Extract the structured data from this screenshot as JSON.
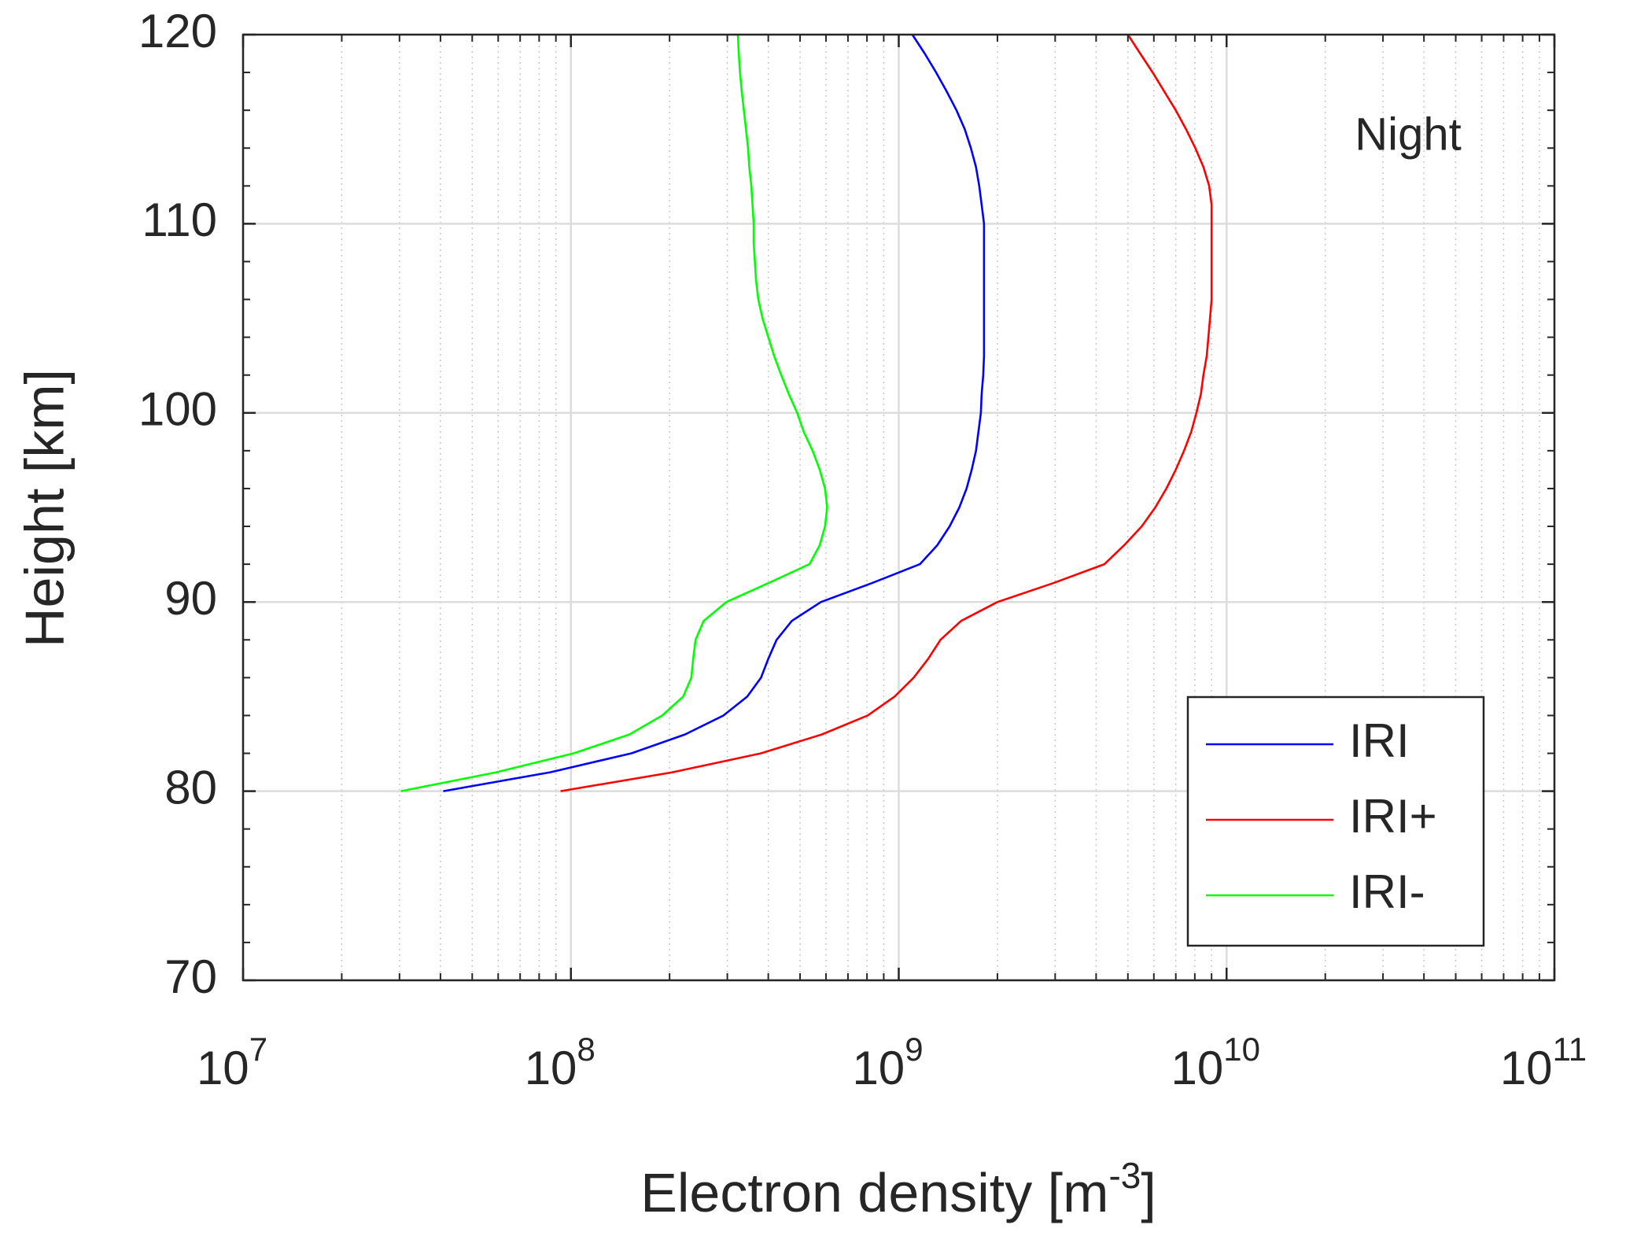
{
  "chart_data": {
    "type": "line",
    "orientation": "profile",
    "annotation": "Night",
    "x_label": [
      "Electron density [m",
      "-3",
      "]"
    ],
    "y_label": "Height [km]",
    "xscale": "log",
    "xlim": [
      10000000,
      100000000000
    ],
    "ylim": [
      70,
      120
    ],
    "xticks": [
      {
        "value": 10000000,
        "label": "10",
        "exponent": "7"
      },
      {
        "value": 100000000,
        "label": "10",
        "exponent": "8"
      },
      {
        "value": 1000000000,
        "label": "10",
        "exponent": "9"
      },
      {
        "value": 10000000000,
        "label": "10",
        "exponent": "10"
      },
      {
        "value": 100000000000,
        "label": "10",
        "exponent": "11"
      }
    ],
    "yticks": [
      70,
      80,
      90,
      100,
      110,
      120
    ],
    "grid": true,
    "minor_grid": true,
    "legend": "lower right",
    "y": [
      80,
      81,
      82,
      83,
      84,
      85,
      86,
      87,
      88,
      89,
      90,
      91,
      92,
      93,
      94,
      95,
      96,
      97,
      98,
      99,
      100,
      101,
      102,
      103,
      104,
      105,
      106,
      107,
      108,
      109,
      110,
      111,
      112,
      113,
      114,
      115,
      116,
      117,
      118,
      119,
      120
    ],
    "series": [
      {
        "name": "IRI",
        "color": "#0000ff",
        "values": [
          40800000.0,
          86500000.0,
          153000000.0,
          223000000.0,
          292000000.0,
          345000000.0,
          380000000.0,
          400000000.0,
          424000000.0,
          472000000.0,
          579000000.0,
          828000000.0,
          1160000000.0,
          1310000000.0,
          1430000000.0,
          1530000000.0,
          1610000000.0,
          1670000000.0,
          1720000000.0,
          1750000000.0,
          1780000000.0,
          1790000000.0,
          1810000000.0,
          1820000000.0,
          1820000000.0,
          1820000000.0,
          1820000000.0,
          1820000000.0,
          1820000000.0,
          1820000000.0,
          1820000000.0,
          1790000000.0,
          1760000000.0,
          1720000000.0,
          1660000000.0,
          1590000000.0,
          1500000000.0,
          1400000000.0,
          1300000000.0,
          1200000000.0,
          1100000000.0
        ]
      },
      {
        "name": "IRI+",
        "color": "#ff0000",
        "values": [
          93000000.0,
          204000000.0,
          380000000.0,
          583000000.0,
          804000000.0,
          971000000.0,
          1110000000.0,
          1230000000.0,
          1340000000.0,
          1550000000.0,
          2000000000.0,
          2960000000.0,
          4240000000.0,
          4870000000.0,
          5510000000.0,
          6060000000.0,
          6550000000.0,
          7000000000.0,
          7420000000.0,
          7800000000.0,
          8090000000.0,
          8350000000.0,
          8500000000.0,
          8700000000.0,
          8800000000.0,
          8900000000.0,
          9000000000.0,
          9000000000.0,
          9000000000.0,
          9000000000.0,
          9000000000.0,
          9000000000.0,
          8850000000.0,
          8500000000.0,
          8030000000.0,
          7520000000.0,
          7000000000.0,
          6450000000.0,
          5950000000.0,
          5450000000.0,
          5000000000.0
        ]
      },
      {
        "name": "IRI-",
        "color": "#00ff00",
        "values": [
          30300000.0,
          59200000.0,
          102000000.0,
          151000000.0,
          190000000.0,
          220000000.0,
          233000000.0,
          236000000.0,
          240000000.0,
          254000000.0,
          298000000.0,
          400000000.0,
          534000000.0,
          574000000.0,
          596000000.0,
          605000000.0,
          596000000.0,
          574000000.0,
          546000000.0,
          513000000.0,
          490000000.0,
          462000000.0,
          438000000.0,
          417000000.0,
          400000000.0,
          384000000.0,
          373000000.0,
          367000000.0,
          364000000.0,
          361000000.0,
          361000000.0,
          358000000.0,
          355000000.0,
          350000000.0,
          347000000.0,
          342000000.0,
          337000000.0,
          332000000.0,
          328000000.0,
          325000000.0,
          323000000.0
        ]
      }
    ]
  }
}
